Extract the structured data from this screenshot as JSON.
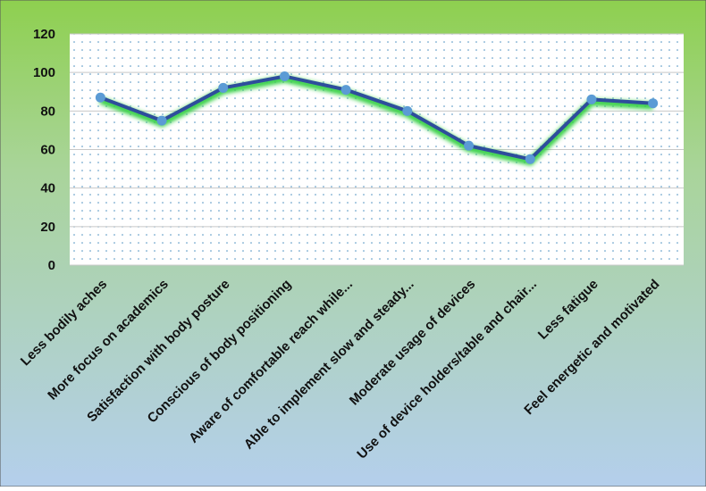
{
  "chart_data": {
    "type": "line",
    "categories": [
      "Less bodily aches",
      "More focus on academics",
      "Satisfaction with body posture",
      "Conscious of body positioning",
      "Aware of comfortable reach while...",
      "Able to implement slow and steady...",
      "Moderate usage of devices",
      "Use of device holders/table and chair...",
      "Less fatigue",
      "Feel energetic and motivated"
    ],
    "values": [
      87,
      75,
      92,
      98,
      91,
      80,
      62,
      55,
      86,
      84
    ],
    "color": "#2e4d9c",
    "marker_color": "#5b9bd5",
    "ylim": [
      0,
      120
    ],
    "yticks": [
      0,
      20,
      40,
      60,
      80,
      100,
      120
    ],
    "grid": true
  }
}
